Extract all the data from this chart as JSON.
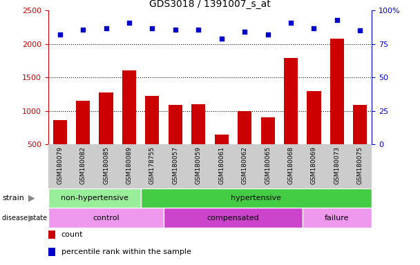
{
  "title": "GDS3018 / 1391007_s_at",
  "samples": [
    "GSM180079",
    "GSM180082",
    "GSM180085",
    "GSM180089",
    "GSM178755",
    "GSM180057",
    "GSM180059",
    "GSM180061",
    "GSM180062",
    "GSM180065",
    "GSM180068",
    "GSM180069",
    "GSM180073",
    "GSM180075"
  ],
  "counts": [
    860,
    1150,
    1280,
    1610,
    1220,
    1090,
    1100,
    650,
    1000,
    900,
    1790,
    1300,
    2080,
    1090
  ],
  "percentile": [
    82,
    86,
    87,
    91,
    87,
    86,
    86,
    79,
    84,
    82,
    91,
    87,
    93,
    85
  ],
  "ylim_left": [
    500,
    2500
  ],
  "ylim_right": [
    0,
    100
  ],
  "yticks_left": [
    500,
    1000,
    1500,
    2000,
    2500
  ],
  "yticks_right": [
    0,
    25,
    50,
    75,
    100
  ],
  "bar_color": "#cc0000",
  "scatter_color": "#0000cc",
  "strain_groups": [
    {
      "label": "non-hypertensive",
      "start": 0,
      "end": 4,
      "color": "#99ee99"
    },
    {
      "label": "hypertensive",
      "start": 4,
      "end": 14,
      "color": "#44cc44"
    }
  ],
  "disease_groups": [
    {
      "label": "control",
      "start": 0,
      "end": 5,
      "color": "#ee99ee"
    },
    {
      "label": "compensated",
      "start": 5,
      "end": 11,
      "color": "#cc44cc"
    },
    {
      "label": "failure",
      "start": 11,
      "end": 14,
      "color": "#ee99ee"
    }
  ],
  "legend_items": [
    {
      "color": "#cc0000",
      "label": "count"
    },
    {
      "color": "#0000cc",
      "label": "percentile rank within the sample"
    }
  ],
  "left_axis_color": "#cc0000",
  "right_axis_color": "#0000cc",
  "xtick_bg_color": "#cccccc"
}
